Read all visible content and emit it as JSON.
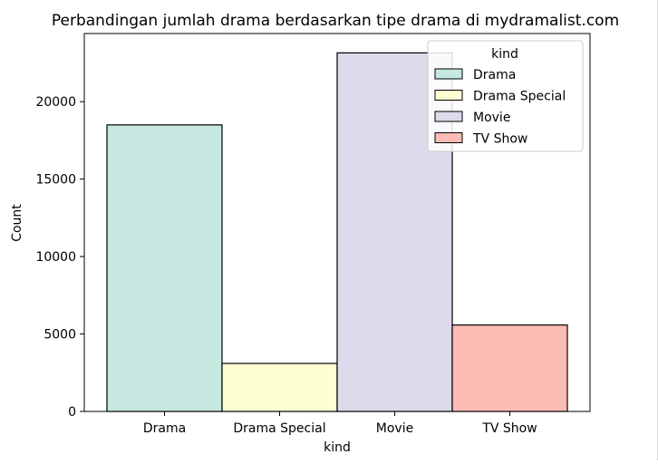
{
  "chart_data": {
    "type": "bar",
    "title": "Perbandingan jumlah drama berdasarkan tipe drama di mydramalist.com",
    "xlabel": "kind",
    "ylabel": "Count",
    "categories": [
      "Drama",
      "Drama Special",
      "Movie",
      "TV Show"
    ],
    "values": [
      18500,
      3100,
      23150,
      5580
    ],
    "colors": [
      "#c6e8e1",
      "#ffffd4",
      "#dedaec",
      "#fcbcb6"
    ],
    "ylim": [
      0,
      24400
    ],
    "yticks": [
      0,
      5000,
      10000,
      15000,
      20000
    ],
    "grid": false,
    "legend": {
      "title": "kind",
      "placement": "top-right",
      "entries": [
        "Drama",
        "Drama Special",
        "Movie",
        "TV Show"
      ]
    }
  }
}
